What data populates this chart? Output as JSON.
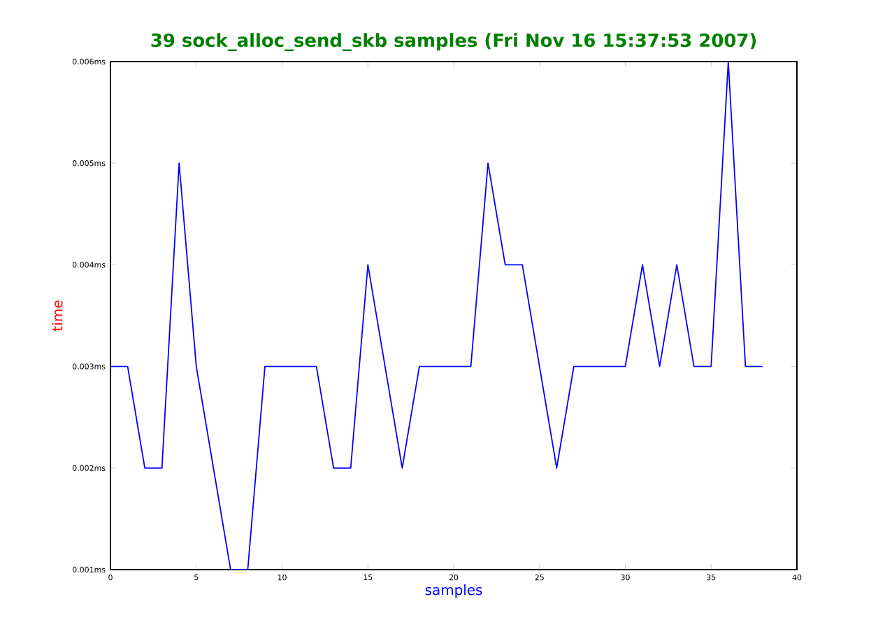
{
  "chart_data": {
    "type": "line",
    "title": "39 sock_alloc_send_skb samples (Fri Nov 16 15:37:53 2007)",
    "xlabel": "samples",
    "ylabel": "time",
    "x": [
      0,
      1,
      2,
      3,
      4,
      5,
      6,
      7,
      8,
      9,
      10,
      11,
      12,
      13,
      14,
      15,
      16,
      17,
      18,
      19,
      20,
      21,
      22,
      23,
      24,
      25,
      26,
      27,
      28,
      29,
      30,
      31,
      32,
      33,
      34,
      35,
      36,
      37,
      38
    ],
    "series": [
      {
        "color": "#0000ff",
        "values": [
          0.003,
          0.003,
          0.002,
          0.002,
          0.005,
          0.003,
          0.002,
          0.001,
          0.001,
          0.003,
          0.003,
          0.003,
          0.003,
          0.002,
          0.002,
          0.004,
          0.003,
          0.002,
          0.003,
          0.003,
          0.003,
          0.003,
          0.005,
          0.004,
          0.004,
          0.003,
          0.002,
          0.003,
          0.003,
          0.003,
          0.003,
          0.004,
          0.003,
          0.004,
          0.003,
          0.003,
          0.006,
          0.003,
          0.003
        ]
      }
    ],
    "xlim": [
      0,
      40
    ],
    "ylim": [
      0.001,
      0.006
    ],
    "xticks": [
      0,
      5,
      10,
      15,
      20,
      25,
      30,
      35,
      40
    ],
    "yticks": [
      {
        "value": 0.001,
        "label": "0.001ms"
      },
      {
        "value": 0.002,
        "label": "0.002ms"
      },
      {
        "value": 0.003,
        "label": "0.003ms"
      },
      {
        "value": 0.004,
        "label": "0.004ms"
      },
      {
        "value": 0.005,
        "label": "0.005ms"
      },
      {
        "value": 0.006,
        "label": "0.006ms"
      }
    ],
    "grid": false,
    "marker": "none",
    "line_style": "solid"
  }
}
